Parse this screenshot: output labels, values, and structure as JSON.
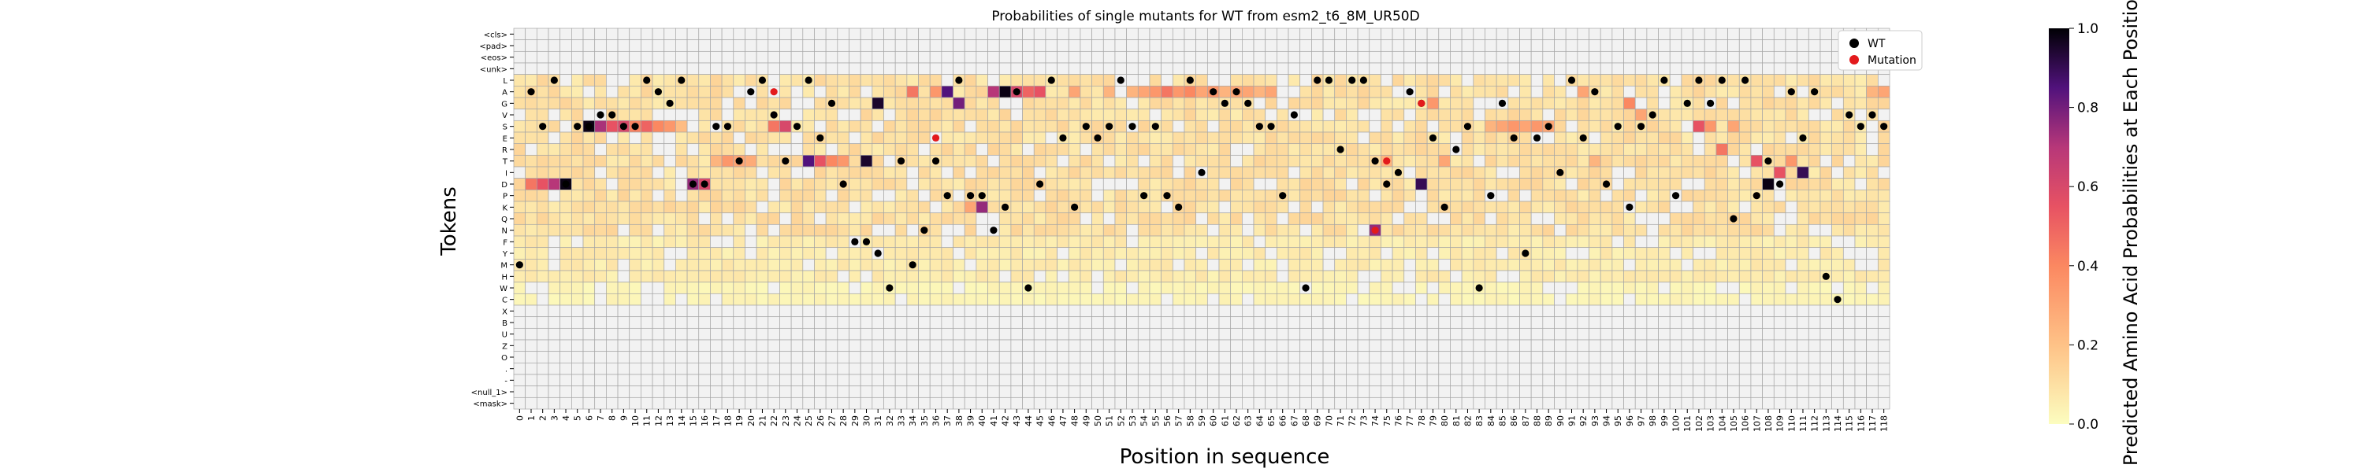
{
  "chart_data": {
    "type": "heatmap",
    "title": "Probabilities of single mutants for WT from esm2_t6_8M_UR50D",
    "xlabel": "Position in sequence",
    "ylabel": "Tokens",
    "colorbar_label": "Predicted Amino Acid Probabilities at Each Position",
    "colorbar_ticks": [
      "0.0",
      "0.2",
      "0.4",
      "0.6",
      "0.8",
      "1.0"
    ],
    "colorbar_range": [
      0,
      1
    ],
    "colormap": "magma_r",
    "grid": true,
    "legend_position": "top-right",
    "legend": [
      {
        "label": "WT",
        "color": "#000000"
      },
      {
        "label": "Mutation",
        "color": "#e31a1c"
      }
    ],
    "tokens": [
      "<cls>",
      "<pad>",
      "<eos>",
      "<unk>",
      "L",
      "A",
      "G",
      "V",
      "S",
      "E",
      "R",
      "T",
      "I",
      "D",
      "P",
      "K",
      "Q",
      "N",
      "F",
      "Y",
      "M",
      "H",
      "W",
      "C",
      "X",
      "B",
      "U",
      "Z",
      "O",
      ".",
      "-",
      "<null_1>",
      "<mask>"
    ],
    "positions": [
      0,
      1,
      2,
      3,
      4,
      5,
      6,
      7,
      8,
      9,
      10,
      11,
      12,
      13,
      14,
      15,
      16,
      17,
      18,
      19,
      20,
      21,
      22,
      23,
      24,
      25,
      26,
      27,
      28,
      29,
      30,
      31,
      32,
      33,
      34,
      35,
      36,
      37,
      38,
      39,
      40,
      41,
      42,
      43,
      44,
      45,
      46,
      47,
      48,
      49,
      50,
      51,
      52,
      53,
      54,
      55,
      56,
      57,
      58,
      59,
      60,
      61,
      62,
      63,
      64,
      65,
      66,
      67,
      68,
      69,
      70,
      71,
      72,
      73,
      74,
      75,
      76,
      77,
      78,
      79,
      80,
      81,
      82,
      83,
      84,
      85,
      86,
      87,
      88,
      89,
      90,
      91,
      92,
      93,
      94,
      95,
      96,
      97,
      98,
      99,
      100,
      101,
      102,
      103,
      104,
      105,
      106,
      107,
      108,
      109,
      110,
      111,
      112,
      113,
      114,
      115,
      116,
      117,
      118
    ],
    "wt_sequence": "MASLDSSVVSSLAGLDDSSTALVTSLEGDFFYWTMNTPLPPNKAWDLEKSESLSPSPKLIAGAGSSPVWLLRLLTDIAGEKRSWPGEYESILEADSKSVLPGLGLQLPTDAEAHCVSVSRQSKHAEDSG",
    "mutation_markers": [
      [
        22,
        "A"
      ],
      [
        36,
        "E"
      ],
      [
        74,
        "N"
      ],
      [
        75,
        "T"
      ],
      [
        78,
        "G"
      ]
    ],
    "strong_cells": [
      [
        6,
        "S",
        0.98
      ],
      [
        7,
        "S",
        0.72
      ],
      [
        8,
        "S",
        0.55
      ],
      [
        9,
        "S",
        0.6
      ],
      [
        10,
        "S",
        0.42
      ],
      [
        11,
        "S",
        0.5
      ],
      [
        12,
        "S",
        0.4
      ],
      [
        13,
        "S",
        0.35
      ],
      [
        14,
        "S",
        0.22
      ],
      [
        1,
        "D",
        0.45
      ],
      [
        2,
        "D",
        0.55
      ],
      [
        3,
        "D",
        0.7
      ],
      [
        4,
        "D",
        0.98
      ],
      [
        15,
        "D",
        0.75
      ],
      [
        16,
        "D",
        0.6
      ],
      [
        17,
        "T",
        0.25
      ],
      [
        18,
        "T",
        0.35
      ],
      [
        19,
        "T",
        0.3
      ],
      [
        20,
        "T",
        0.28
      ],
      [
        22,
        "S",
        0.45
      ],
      [
        23,
        "S",
        0.6
      ],
      [
        25,
        "T",
        0.85
      ],
      [
        26,
        "T",
        0.55
      ],
      [
        27,
        "T",
        0.4
      ],
      [
        28,
        "T",
        0.35
      ],
      [
        30,
        "T",
        0.95
      ],
      [
        31,
        "G",
        0.95
      ],
      [
        34,
        "A",
        0.45
      ],
      [
        36,
        "A",
        0.35
      ],
      [
        37,
        "A",
        0.85
      ],
      [
        38,
        "G",
        0.8
      ],
      [
        39,
        "K",
        0.3
      ],
      [
        40,
        "K",
        0.75
      ],
      [
        41,
        "A",
        0.7
      ],
      [
        42,
        "A",
        0.98
      ],
      [
        43,
        "A",
        0.6
      ],
      [
        44,
        "A",
        0.5
      ],
      [
        45,
        "A",
        0.55
      ],
      [
        48,
        "A",
        0.3
      ],
      [
        51,
        "A",
        0.25
      ],
      [
        53,
        "A",
        0.25
      ],
      [
        54,
        "A",
        0.3
      ],
      [
        55,
        "A",
        0.35
      ],
      [
        56,
        "A",
        0.45
      ],
      [
        57,
        "A",
        0.35
      ],
      [
        58,
        "A",
        0.4
      ],
      [
        59,
        "A",
        0.3
      ],
      [
        60,
        "A",
        0.35
      ],
      [
        61,
        "A",
        0.25
      ],
      [
        62,
        "A",
        0.3
      ],
      [
        63,
        "A",
        0.3
      ],
      [
        64,
        "A",
        0.25
      ],
      [
        65,
        "A",
        0.3
      ],
      [
        74,
        "N",
        0.75
      ],
      [
        75,
        "T",
        0.25
      ],
      [
        78,
        "D",
        0.9
      ],
      [
        79,
        "G",
        0.35
      ],
      [
        80,
        "T",
        0.3
      ],
      [
        84,
        "S",
        0.25
      ],
      [
        85,
        "S",
        0.3
      ],
      [
        86,
        "S",
        0.35
      ],
      [
        87,
        "S",
        0.3
      ],
      [
        88,
        "S",
        0.35
      ],
      [
        89,
        "S",
        0.3
      ],
      [
        92,
        "A",
        0.3
      ],
      [
        93,
        "T",
        0.25
      ],
      [
        96,
        "G",
        0.4
      ],
      [
        97,
        "V",
        0.3
      ],
      [
        102,
        "S",
        0.55
      ],
      [
        103,
        "S",
        0.35
      ],
      [
        104,
        "R",
        0.45
      ],
      [
        105,
        "S",
        0.3
      ],
      [
        107,
        "T",
        0.55
      ],
      [
        108,
        "D",
        0.98
      ],
      [
        109,
        "I",
        0.55
      ],
      [
        110,
        "T",
        0.35
      ],
      [
        111,
        "I",
        0.9
      ],
      [
        117,
        "A",
        0.25
      ],
      [
        118,
        "A",
        0.3
      ]
    ]
  }
}
